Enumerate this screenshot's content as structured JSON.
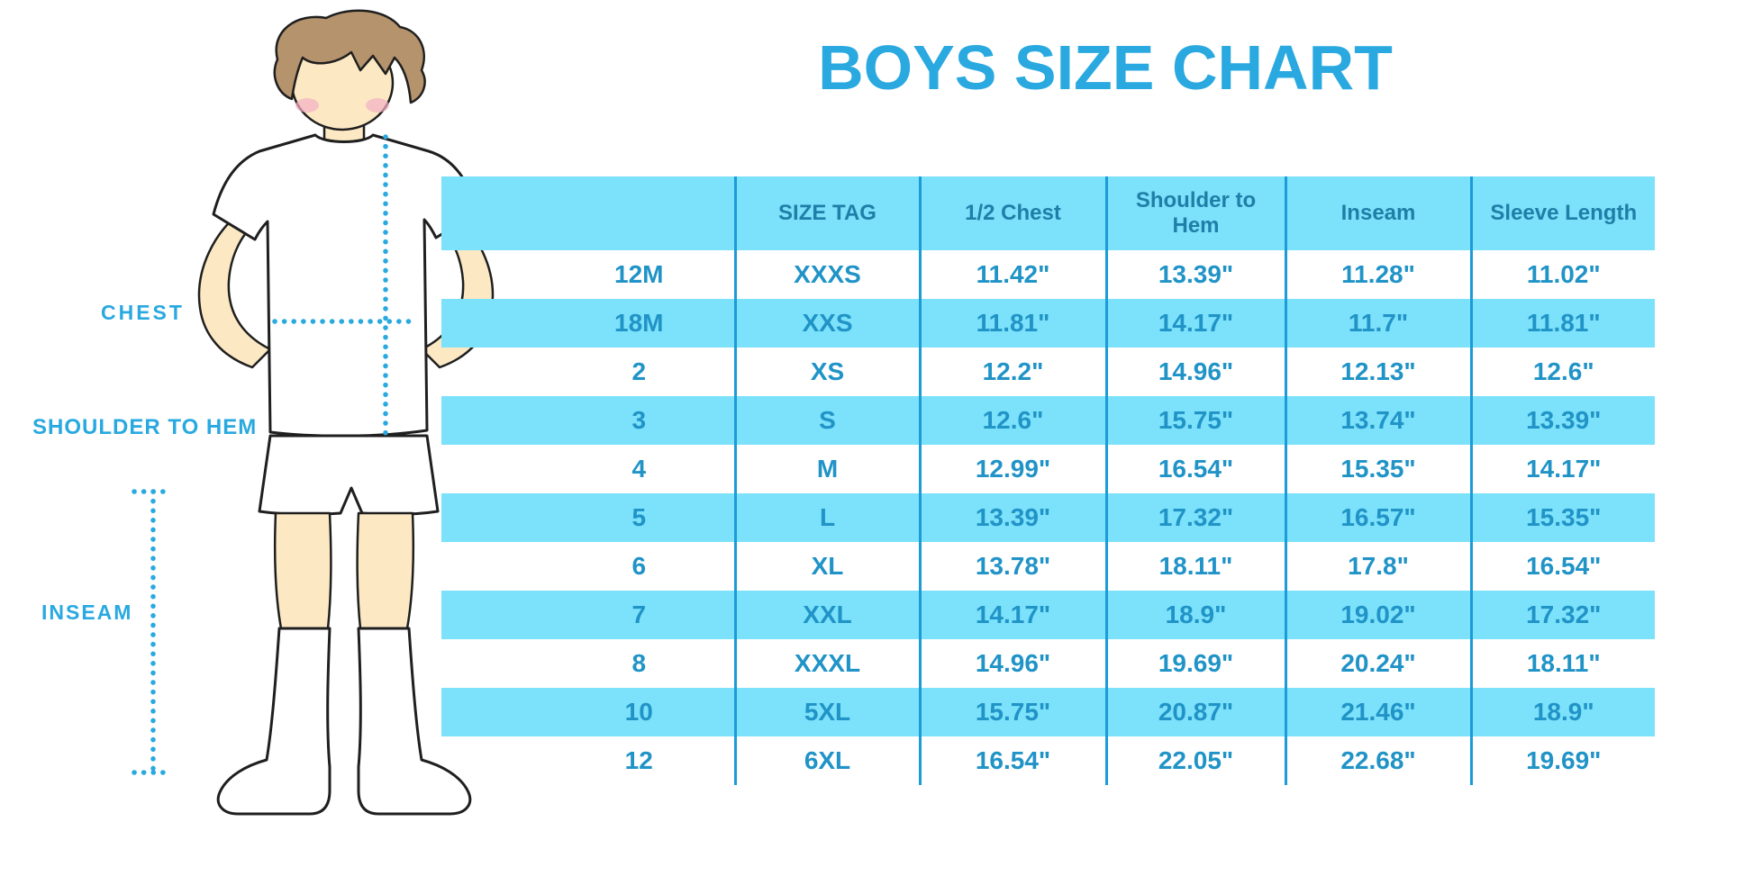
{
  "title": "BOYS SIZE CHART",
  "colors": {
    "accent": "#29A9E0",
    "band": "#7CE1FA",
    "divider": "#1B9BD7",
    "header_text": "#1E7FA8",
    "cell_text": "#2093C7",
    "skin": "#FCE9C4",
    "hair": "#B5936C",
    "blush": "#F3AFC5",
    "outline": "#1F1F1F"
  },
  "diagram": {
    "chest_label": "CHEST",
    "shoulder_to_hem_label": "SHOULDER TO HEM",
    "inseam_label": "INSEAM"
  },
  "table": {
    "headers": [
      "",
      "SIZE TAG",
      "1/2 Chest",
      "Shoulder to Hem",
      "Inseam",
      "Sleeve Length"
    ],
    "rows": [
      [
        "12M",
        "XXXS",
        "11.42\"",
        "13.39\"",
        "11.28\"",
        "11.02\""
      ],
      [
        "18M",
        "XXS",
        "11.81\"",
        "14.17\"",
        "11.7\"",
        "11.81\""
      ],
      [
        "2",
        "XS",
        "12.2\"",
        "14.96\"",
        "12.13\"",
        "12.6\""
      ],
      [
        "3",
        "S",
        "12.6\"",
        "15.75\"",
        "13.74\"",
        "13.39\""
      ],
      [
        "4",
        "M",
        "12.99\"",
        "16.54\"",
        "15.35\"",
        "14.17\""
      ],
      [
        "5",
        "L",
        "13.39\"",
        "17.32\"",
        "16.57\"",
        "15.35\""
      ],
      [
        "6",
        "XL",
        "13.78\"",
        "18.11\"",
        "17.8\"",
        "16.54\""
      ],
      [
        "7",
        "XXL",
        "14.17\"",
        "18.9\"",
        "19.02\"",
        "17.32\""
      ],
      [
        "8",
        "XXXL",
        "14.96\"",
        "19.69\"",
        "20.24\"",
        "18.11\""
      ],
      [
        "10",
        "5XL",
        "15.75\"",
        "20.87\"",
        "21.46\"",
        "18.9\""
      ],
      [
        "12",
        "6XL",
        "16.54\"",
        "22.05\"",
        "22.68\"",
        "19.69\""
      ]
    ]
  }
}
